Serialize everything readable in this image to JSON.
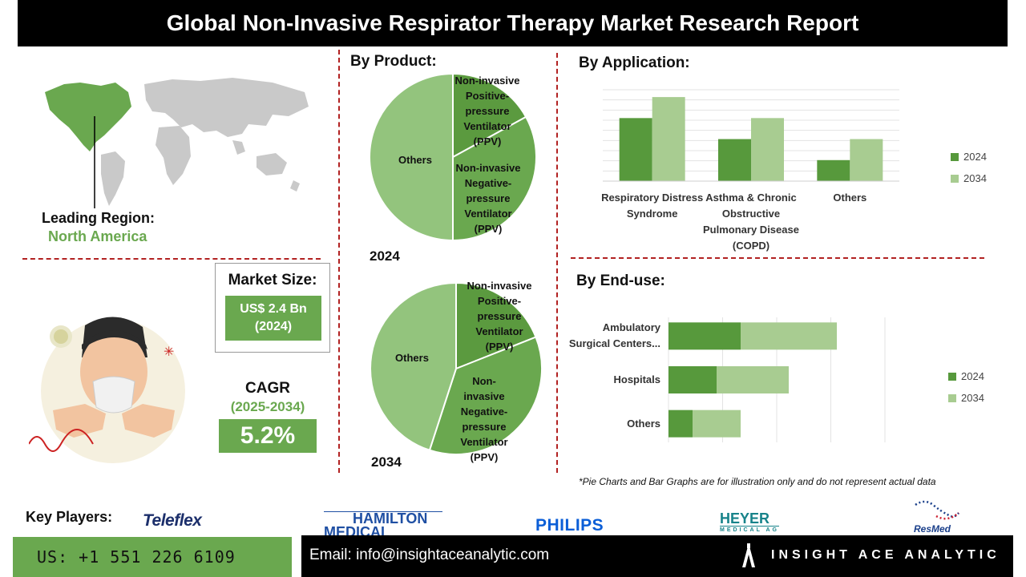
{
  "title": "Global Non-Invasive Respirator Therapy Market Research Report",
  "region": {
    "label": "Leading Region:",
    "value": "North America"
  },
  "market_size": {
    "label": "Market Size:",
    "value_line1": "US$ 2.4 Bn",
    "value_line2": "(2024)"
  },
  "cagr": {
    "label": "CAGR",
    "period": "(2025-2034)",
    "value": "5.2%"
  },
  "sections": {
    "product": "By Product:",
    "application": "By Application:",
    "enduse": "By End-use:"
  },
  "colors": {
    "dark_green": "#6aa84f",
    "mid_green": "#57993c",
    "light_green": "#a8cc91",
    "pie_light": "#93c47d",
    "darker_green": "#5b9a3f",
    "divider": "#b22222"
  },
  "chart_data": [
    {
      "type": "pie",
      "year": "2024",
      "labels": [
        "Non-invasive Positive-pressure Ventilator (PPV)",
        "Non-invasive Negative-pressure Ventilator (PPV)",
        "Others"
      ],
      "label_lines": [
        [
          "Non-invasive",
          "Positive-",
          "pressure",
          "Ventilator",
          "(PPV)"
        ],
        [
          "Non-invasive",
          "Negative-",
          "pressure",
          "Ventilator",
          "(PPV)"
        ],
        [
          "Others"
        ]
      ],
      "values": [
        17,
        33,
        50
      ]
    },
    {
      "type": "pie",
      "year": "2034",
      "labels": [
        "Non-invasive Positive-pressure Ventilator (PPV)",
        "Non-invasive Negative-pressure Ventilator (PPV)",
        "Others"
      ],
      "label_lines": [
        [
          "Non-invasive",
          "Positive-",
          "pressure",
          "Ventilator",
          "(PPV)"
        ],
        [
          "Non-",
          "invasive",
          "Negative-",
          "pressure",
          "Ventilator",
          "(PPV)"
        ],
        [
          "Others"
        ]
      ],
      "values": [
        19,
        36,
        45
      ]
    },
    {
      "type": "bar",
      "orientation": "vertical",
      "categories": [
        "Respiratory Distress Syndrome",
        "Asthma & Chronic Obstructive Pulmonary Disease (COPD)",
        "Others"
      ],
      "category_lines": [
        [
          "Respiratory Distress",
          "Syndrome"
        ],
        [
          "Asthma & Chronic",
          "Obstructive",
          "Pulmonary Disease",
          "(COPD)"
        ],
        [
          "Others"
        ]
      ],
      "series": [
        {
          "name": "2024",
          "values": [
            3,
            2,
            1
          ]
        },
        {
          "name": "2034",
          "values": [
            4,
            3,
            2
          ]
        }
      ],
      "ylim": [
        0,
        4.5
      ],
      "legend": "right"
    },
    {
      "type": "bar",
      "orientation": "horizontal",
      "categories": [
        "Ambulatory Surgical Centers...",
        "Hospitals",
        "Others"
      ],
      "category_lines": [
        [
          "Ambulatory",
          "Surgical Centers..."
        ],
        [
          "Hospitals"
        ],
        [
          "Others"
        ]
      ],
      "series": [
        {
          "name": "2024",
          "values": [
            3,
            2,
            1
          ]
        },
        {
          "name": "2034",
          "values": [
            4,
            3,
            2
          ]
        }
      ],
      "xlim": [
        0,
        9
      ],
      "legend": "right"
    }
  ],
  "note": "*Pie Charts and Bar Graphs are for illustration only and do not represent actual data",
  "key_players": {
    "label": "Key Players:",
    "logos": [
      "Teleflex",
      "HAMILTON",
      "MEDICAL",
      "PHILIPS",
      "HEYER",
      "MEDICAL AG",
      "ResMed"
    ]
  },
  "footer": {
    "phone": "US: +1 551 226 6109",
    "email": "Email: info@insightaceanalytic.com",
    "brand": "INSIGHT ACE ANALYTIC"
  }
}
